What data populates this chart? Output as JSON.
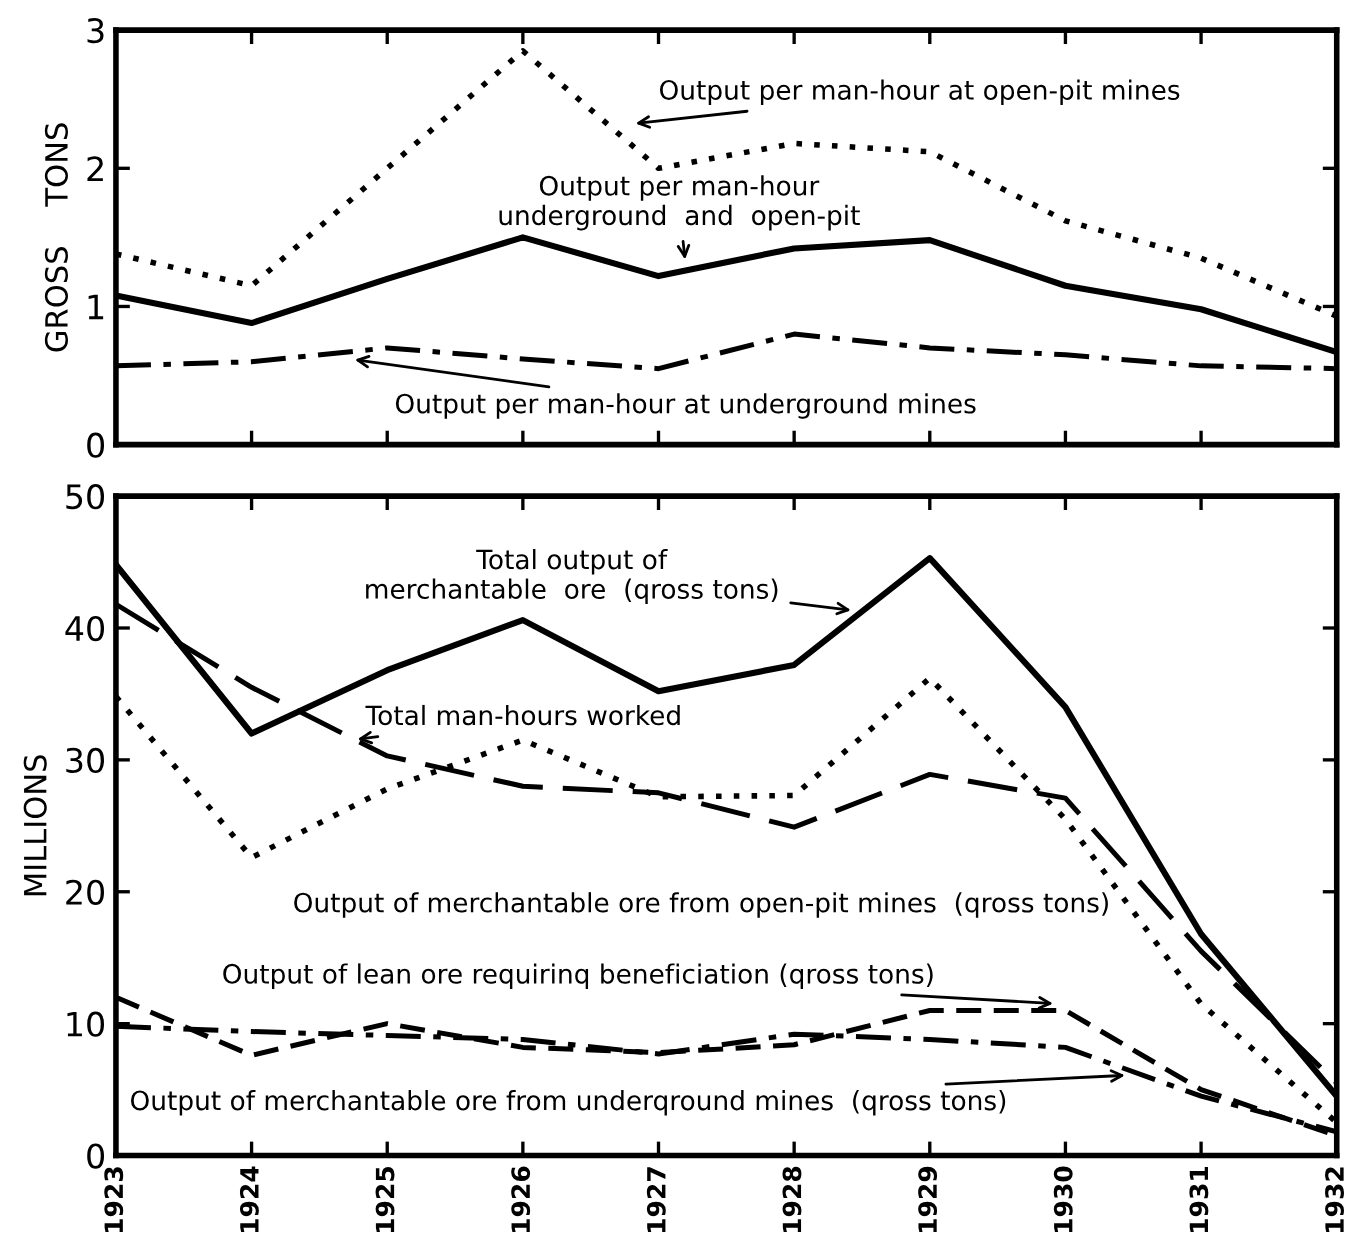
{
  "chart_data": [
    {
      "type": "line",
      "ylabel": "GROSS    TONS",
      "categories": [
        "1923",
        "1924",
        "1925",
        "1926",
        "1927",
        "1928",
        "1929",
        "1930",
        "1931",
        "1932"
      ],
      "ylim": [
        0,
        3
      ],
      "yticks": [
        0,
        1,
        2,
        3
      ],
      "grid": false,
      "legend": false,
      "tick_labels": "y",
      "marker": "none",
      "series": [
        {
          "name": "Output per man-hour at open-pit mines",
          "color": "#000000",
          "line_style": "dotted",
          "values": [
            1.38,
            1.15,
            2.0,
            2.85,
            2.0,
            2.18,
            2.12,
            1.62,
            1.35,
            0.93
          ]
        },
        {
          "name": "Output per man-hour\nunderground  and  open-pit",
          "color": "#000000",
          "line_style": "solid",
          "values": [
            1.08,
            0.88,
            1.2,
            1.5,
            1.22,
            1.42,
            1.48,
            1.15,
            0.98,
            0.67
          ]
        },
        {
          "name": "Output per man-hour at underground mines",
          "color": "#000000",
          "line_style": "dashdot",
          "values": [
            0.57,
            0.6,
            0.7,
            0.62,
            0.55,
            0.8,
            0.7,
            0.65,
            0.57,
            0.55
          ]
        }
      ]
    },
    {
      "type": "line",
      "ylabel": "MILLIONS",
      "categories": [
        "1923",
        "1924",
        "1925",
        "1926",
        "1927",
        "1928",
        "1929",
        "1930",
        "1931",
        "1932"
      ],
      "ylim": [
        0,
        50
      ],
      "yticks": [
        0,
        10,
        20,
        30,
        40,
        50
      ],
      "grid": false,
      "legend": false,
      "marker": "none",
      "series": [
        {
          "name": "Total output of\nmerchantable  ore  (qross tons)",
          "color": "#000000",
          "line_style": "solid",
          "values": [
            44.8,
            32,
            36.8,
            40.6,
            35.2,
            37.2,
            45.3,
            34,
            16.8,
            4.5
          ]
        },
        {
          "name": "Total man-hours worked",
          "color": "#000000",
          "line_style": "longdashed",
          "values": [
            41.8,
            35.5,
            30.3,
            28,
            27.5,
            24.9,
            28.9,
            27.1,
            15.5,
            5.5
          ]
        },
        {
          "name": "Output of merchantable ore from open-pit mines  (qross tons)",
          "color": "#000000",
          "line_style": "dotted",
          "values": [
            34.8,
            22.6,
            27.8,
            31.5,
            27.2,
            27.3,
            36.2,
            25.5,
            11.5,
            2.5
          ]
        },
        {
          "name": "Output of lean ore requirinq beneficiation (qross tons)",
          "color": "#000000",
          "line_style": "dashed",
          "values": [
            12,
            7.6,
            10,
            8.2,
            7.8,
            8.4,
            11,
            11,
            5,
            1.5
          ]
        },
        {
          "name": "Output of merchantable ore from underqround mines  (qross tons)",
          "color": "#000000",
          "line_style": "dashdot",
          "values": [
            9.8,
            9.4,
            9.1,
            8.8,
            7.7,
            9.2,
            8.8,
            8.2,
            4.5,
            1.8
          ]
        }
      ]
    }
  ]
}
